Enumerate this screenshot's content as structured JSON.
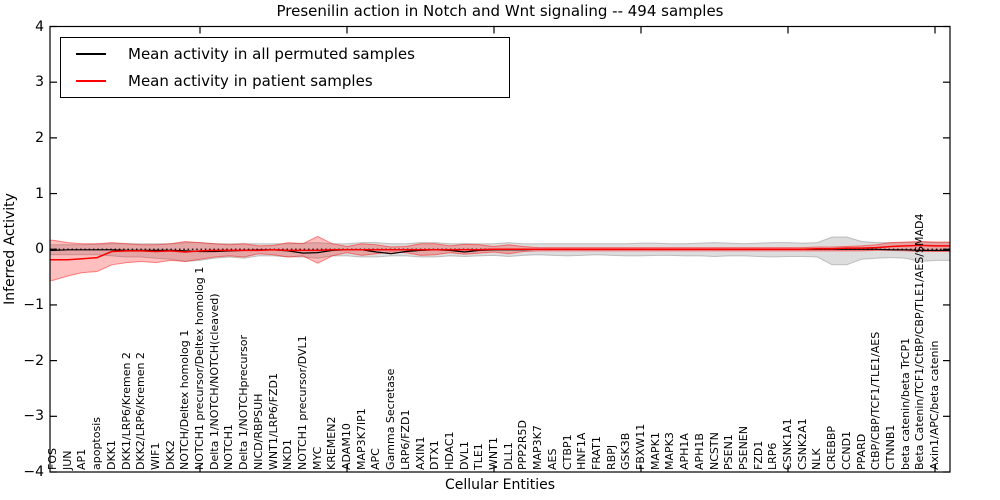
{
  "title": "Presenilin action in Notch and Wnt signaling -- 494 samples",
  "axes": {
    "ylabel": "Inferred Activity",
    "xlabel": "Cellular Entities",
    "yticks": [
      "4",
      "3",
      "2",
      "1",
      "0",
      "−1",
      "−2",
      "−3",
      "−4"
    ],
    "ytick_values": [
      4,
      3,
      2,
      1,
      0,
      -1,
      -2,
      -3,
      -4
    ],
    "xtick_major_indices": [
      10,
      20,
      30,
      40,
      50,
      60
    ]
  },
  "legend": {
    "items": [
      {
        "label": "Mean activity in all permuted samples",
        "color": "#000000"
      },
      {
        "label": "Mean activity in patient samples",
        "color": "#ff0000"
      }
    ]
  },
  "colors": {
    "permuted_line": "#000000",
    "permuted_band_fill": "rgba(120,120,120,0.25)",
    "permuted_band_edge": "rgba(100,100,100,0.35)",
    "patient_line": "#ff0000",
    "patient_band_fill": "rgba(255,0,0,0.25)",
    "patient_band_edge": "rgba(255,0,0,0.45)",
    "zero_line": "#000000",
    "spine": "#000000"
  },
  "chart_data": {
    "type": "line",
    "title": "Presenilin action in Notch and Wnt signaling -- 494 samples",
    "xlabel": "Cellular Entities",
    "ylabel": "Inferred Activity",
    "ylim": [
      -4,
      4
    ],
    "grid": false,
    "legend_position": "upper left",
    "zero_reference_line": true,
    "categories": [
      "FOS",
      "JUN",
      "AP1",
      "apoptosis",
      "DKK1",
      "DKK1/LRP6/Kremen 2",
      "DKK2/LRP6/Kremen 2",
      "WIF1",
      "DKK2",
      "NOTCH/Deltex homolog 1",
      "NOTCH1 precursor/Deltex homolog 1",
      "Delta 1/NOTCH/NOTCH(cleaved)",
      "NOTCH1",
      "Delta 1/NOTCHprecursor",
      "NICD/RBPSUH",
      "WNT1/LRP6/FZD1",
      "NKD1",
      "NOTCH1 precursor/DVL1",
      "MYC",
      "KREMEN2",
      "ADAM10",
      "MAP3K7IP1",
      "APC",
      "Gamma Secretase",
      "LRP6/FZD1",
      "AXIN1",
      "DTX1",
      "HDAC1",
      "DVL1",
      "TLE1",
      "WNT1",
      "DLL1",
      "PPP2R5D",
      "MAP3K7",
      "AES",
      "CTBP1",
      "HNF1A",
      "FRAT1",
      "RBPJ",
      "GSK3B",
      "FBXW11",
      "MAPK1",
      "MAPK3",
      "APH1A",
      "APH1B",
      "NCSTN",
      "PSEN1",
      "PSENEN",
      "FZD1",
      "LRP6",
      "CSNK1A1",
      "CSNK2A1",
      "NLK",
      "CREBBP",
      "CCND1",
      "PPARD",
      "CtBP/CBP/TCF1/TLE1/AES",
      "CTNNB1",
      "beta catenin/beta TrCP1",
      "Beta Catenin/TCF1/CtBP/CBP/TLE1/AES/SMAD4",
      "Axin1/APC/beta catenin"
    ],
    "series": [
      {
        "name": "Mean activity in all permuted samples",
        "color": "#000000",
        "values": [
          -0.02,
          -0.01,
          -0.01,
          -0.01,
          -0.01,
          -0.02,
          -0.02,
          -0.02,
          -0.02,
          -0.03,
          -0.04,
          -0.04,
          -0.03,
          -0.02,
          -0.01,
          -0.01,
          -0.03,
          -0.07,
          -0.06,
          -0.02,
          -0.01,
          -0.01,
          -0.05,
          -0.08,
          -0.04,
          -0.02,
          -0.01,
          -0.02,
          -0.05,
          -0.02,
          -0.01,
          -0.01,
          -0.01,
          0.0,
          0.0,
          0.0,
          0.0,
          0.0,
          0.0,
          0.0,
          0.0,
          0.0,
          0.0,
          0.0,
          0.0,
          0.0,
          0.0,
          0.0,
          0.0,
          0.0,
          0.0,
          0.0,
          0.0,
          0.0,
          0.0,
          0.0,
          0.0,
          -0.01,
          -0.01,
          -0.02,
          -0.02
        ],
        "band_upper": [
          0.08,
          0.08,
          0.08,
          0.09,
          0.1,
          0.1,
          0.1,
          0.1,
          0.1,
          0.12,
          0.12,
          0.1,
          0.1,
          0.1,
          0.1,
          0.1,
          0.1,
          0.11,
          0.12,
          0.1,
          0.1,
          0.12,
          0.12,
          0.1,
          0.1,
          0.12,
          0.12,
          0.1,
          0.1,
          0.1,
          0.1,
          0.12,
          0.1,
          0.1,
          0.1,
          0.1,
          0.1,
          0.1,
          0.1,
          0.1,
          0.11,
          0.11,
          0.1,
          0.1,
          0.11,
          0.12,
          0.11,
          0.1,
          0.11,
          0.12,
          0.12,
          0.11,
          0.12,
          0.22,
          0.22,
          0.14,
          0.12,
          0.12,
          0.12,
          0.13,
          0.12
        ],
        "band_lower": [
          -0.1,
          -0.1,
          -0.1,
          -0.1,
          -0.12,
          -0.14,
          -0.14,
          -0.16,
          -0.18,
          -0.22,
          -0.2,
          -0.16,
          -0.14,
          -0.16,
          -0.12,
          -0.12,
          -0.14,
          -0.14,
          -0.16,
          -0.12,
          -0.12,
          -0.14,
          -0.14,
          -0.12,
          -0.12,
          -0.14,
          -0.14,
          -0.12,
          -0.13,
          -0.12,
          -0.11,
          -0.13,
          -0.11,
          -0.1,
          -0.11,
          -0.12,
          -0.11,
          -0.1,
          -0.11,
          -0.12,
          -0.12,
          -0.11,
          -0.11,
          -0.12,
          -0.12,
          -0.13,
          -0.12,
          -0.12,
          -0.13,
          -0.14,
          -0.13,
          -0.13,
          -0.14,
          -0.28,
          -0.28,
          -0.18,
          -0.16,
          -0.15,
          -0.16,
          -0.22,
          -0.2
        ]
      },
      {
        "name": "Mean activity in patient samples",
        "color": "#ff0000",
        "values": [
          -0.19,
          -0.19,
          -0.17,
          -0.15,
          -0.04,
          -0.03,
          -0.03,
          -0.04,
          -0.03,
          -0.05,
          -0.03,
          -0.02,
          -0.02,
          -0.02,
          -0.02,
          -0.01,
          -0.02,
          -0.02,
          -0.02,
          -0.01,
          -0.01,
          -0.01,
          -0.01,
          -0.01,
          -0.01,
          -0.01,
          -0.01,
          -0.01,
          -0.01,
          -0.01,
          0.0,
          0.0,
          0.0,
          0.0,
          0.0,
          0.0,
          0.0,
          0.0,
          0.0,
          0.0,
          0.0,
          0.0,
          0.0,
          0.0,
          0.0,
          0.0,
          0.0,
          0.0,
          0.0,
          0.0,
          0.0,
          0.0,
          0.01,
          0.01,
          0.02,
          0.02,
          0.03,
          0.05,
          0.06,
          0.07,
          0.06
        ],
        "band_upper": [
          0.16,
          0.12,
          0.1,
          0.1,
          0.12,
          0.1,
          0.08,
          0.08,
          0.1,
          0.14,
          0.12,
          0.1,
          0.08,
          0.1,
          0.06,
          0.07,
          0.12,
          0.1,
          0.23,
          0.1,
          0.05,
          0.1,
          0.08,
          0.04,
          0.05,
          0.1,
          0.1,
          0.06,
          0.09,
          0.08,
          0.05,
          0.08,
          0.05,
          0.03,
          0.03,
          0.03,
          0.03,
          0.03,
          0.03,
          0.03,
          0.03,
          0.03,
          0.03,
          0.03,
          0.03,
          0.03,
          0.03,
          0.03,
          0.03,
          0.03,
          0.03,
          0.03,
          0.04,
          0.04,
          0.05,
          0.06,
          0.08,
          0.12,
          0.13,
          0.14,
          0.13
        ],
        "band_lower": [
          -0.56,
          -0.48,
          -0.42,
          -0.4,
          -0.28,
          -0.24,
          -0.22,
          -0.24,
          -0.2,
          -0.22,
          -0.18,
          -0.14,
          -0.12,
          -0.14,
          -0.08,
          -0.1,
          -0.14,
          -0.12,
          -0.25,
          -0.12,
          -0.06,
          -0.11,
          -0.08,
          -0.05,
          -0.06,
          -0.11,
          -0.1,
          -0.06,
          -0.09,
          -0.07,
          -0.05,
          -0.08,
          -0.04,
          -0.03,
          -0.03,
          -0.03,
          -0.03,
          -0.03,
          -0.03,
          -0.03,
          -0.03,
          -0.03,
          -0.03,
          -0.03,
          -0.03,
          -0.03,
          -0.03,
          -0.03,
          -0.03,
          -0.03,
          -0.03,
          -0.03,
          -0.03,
          -0.03,
          -0.03,
          -0.03,
          -0.02,
          -0.02,
          -0.03,
          -0.04,
          -0.04
        ]
      }
    ]
  }
}
